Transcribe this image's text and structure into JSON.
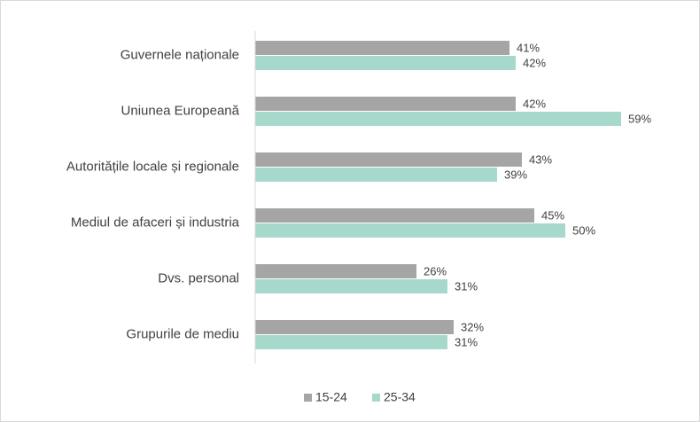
{
  "chart_data": {
    "type": "bar",
    "orientation": "horizontal",
    "categories": [
      "Guvernele naționale",
      "Uniunea Europeană",
      "Autoritățile locale și regionale",
      "Mediul de afaceri și industria",
      "Dvs. personal",
      "Grupurile de mediu"
    ],
    "series": [
      {
        "name": "15-24",
        "color": "#a5a5a5",
        "values": [
          41,
          42,
          43,
          45,
          26,
          32
        ],
        "value_labels": [
          "41%",
          "42%",
          "43%",
          "45%",
          "26%",
          "32%"
        ]
      },
      {
        "name": "25-34",
        "color": "#a6d9cb",
        "values": [
          42,
          59,
          39,
          50,
          31,
          31
        ],
        "value_labels": [
          "42%",
          "59%",
          "39%",
          "50%",
          "31%",
          "31%"
        ]
      }
    ],
    "xlim": [
      0,
      70
    ],
    "legend": "bottom"
  }
}
